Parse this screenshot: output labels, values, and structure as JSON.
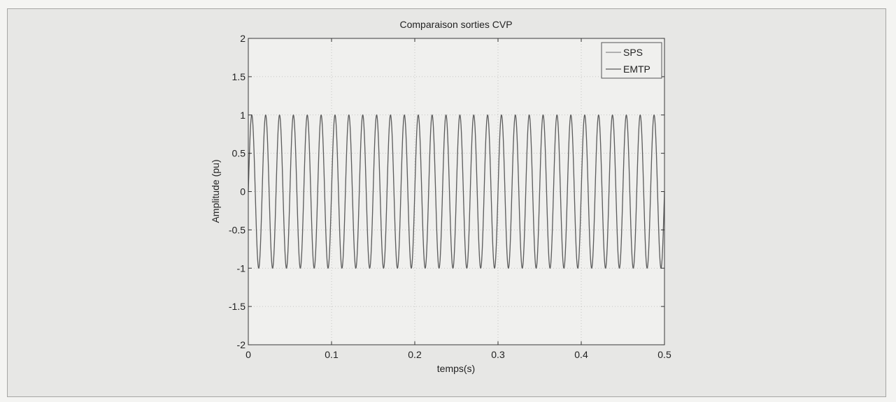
{
  "chart_data": {
    "type": "line",
    "title": "Comparaison sorties CVP",
    "xlabel": "temps(s)",
    "ylabel": "Amplitude (pu)",
    "xlim": [
      0,
      0.5
    ],
    "ylim": [
      -2,
      2
    ],
    "xticks": [
      0,
      0.1,
      0.2,
      0.3,
      0.4,
      0.5
    ],
    "xtick_labels": [
      "0",
      "0.1",
      "0.2",
      "0.3",
      "0.4",
      "0.5"
    ],
    "yticks": [
      -2,
      -1.5,
      -1,
      -0.5,
      0,
      0.5,
      1,
      1.5,
      2
    ],
    "ytick_labels": [
      "-2",
      "-1.5",
      "-1",
      "-0.5",
      "0",
      "0.5",
      "1",
      "1.5",
      "2"
    ],
    "grid": true,
    "legend_position": "top-right",
    "series": [
      {
        "name": "SPS",
        "color": "#8a8a8a",
        "waveform": "sine",
        "frequency_hz": 60,
        "amplitude": 1,
        "phase_deg": 0
      },
      {
        "name": "EMTP",
        "color": "#5a5a5a",
        "waveform": "sine",
        "frequency_hz": 60,
        "amplitude": 1,
        "phase_deg": 0
      }
    ]
  }
}
